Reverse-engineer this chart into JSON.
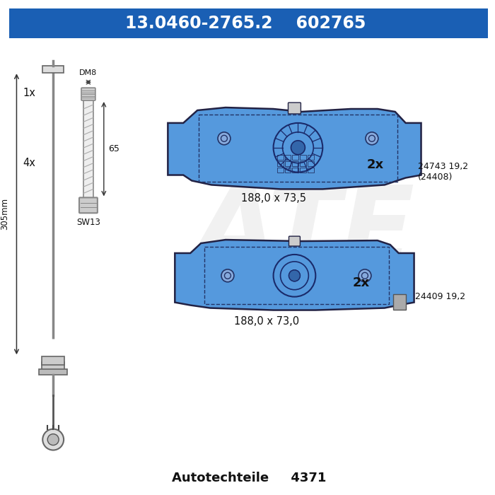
{
  "bg_color": "#ffffff",
  "header_bg": "#1a5fb4",
  "header_text_color": "#ffffff",
  "header_part1": "13.0460-2765.2",
  "header_part2": "602765",
  "header_fontsize": 17,
  "pad_color": "#5599dd",
  "pad_edge_color": "#222244",
  "text_color": "#111111",
  "label_1x": "1x",
  "label_4x": "4x",
  "label_dm8": "DM8",
  "label_65": "65",
  "label_305": "305mm",
  "label_sw13": "SW13",
  "label_2x_top": "2x",
  "label_2x_bot": "2x",
  "label_dim_top": "188,0 x 73,5",
  "label_dim_bot": "188,0 x 73,0",
  "label_part_top1": "24743 19,2",
  "label_part_top2": "(24408)",
  "label_part_bot": "24409 19,2",
  "footer_brand": "Autotechteile",
  "footer_number": "4371",
  "footer_fontsize": 13,
  "watermark": "ATE"
}
